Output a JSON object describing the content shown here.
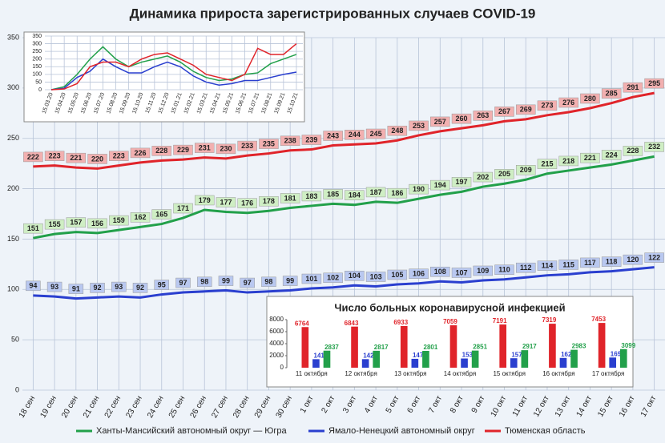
{
  "chart_data": [
    {
      "type": "line",
      "title": "Динамика прироста зарегистрированных случаев COVID-19",
      "categories": [
        "18 сен",
        "19 сен",
        "20 сен",
        "21 сен",
        "22 сен",
        "23 сен",
        "24 сен",
        "25 сен",
        "26 сен",
        "27 сен",
        "28 сен",
        "29 сен",
        "30 сен",
        "1 окт",
        "2 окт",
        "3 окт",
        "4 окт",
        "5 окт",
        "6 окт",
        "7 окт",
        "8 окт",
        "9 окт",
        "10 окт",
        "11 окт",
        "12 окт",
        "13 окт",
        "14 окт",
        "15 окт",
        "16 окт",
        "17 окт"
      ],
      "series": [
        {
          "name": "Ханты-Мансийский автономный округ — Югра",
          "color": "#22a04a",
          "values": [
            151,
            155,
            157,
            156,
            159,
            162,
            165,
            171,
            179,
            177,
            176,
            178,
            181,
            183,
            185,
            184,
            187,
            186,
            190,
            194,
            197,
            202,
            205,
            209,
            215,
            218,
            221,
            224,
            228,
            232
          ]
        },
        {
          "name": "Ямало-Ненецкий автономный округ",
          "color": "#2a3fcf",
          "values": [
            94,
            93,
            91,
            92,
            93,
            92,
            95,
            97,
            98,
            99,
            97,
            98,
            99,
            101,
            102,
            104,
            103,
            105,
            106,
            108,
            107,
            109,
            110,
            112,
            114,
            115,
            117,
            118,
            120,
            122
          ]
        },
        {
          "name": "Тюменская область",
          "color": "#e0242a",
          "values": [
            222,
            223,
            221,
            220,
            223,
            226,
            228,
            229,
            231,
            230,
            233,
            235,
            238,
            239,
            243,
            244,
            245,
            248,
            253,
            257,
            260,
            263,
            267,
            269,
            273,
            276,
            280,
            285,
            291,
            295
          ]
        }
      ],
      "ylim": [
        0,
        350
      ],
      "yticks": [
        0,
        50,
        100,
        150,
        200,
        250,
        300,
        350
      ],
      "grid": true
    },
    {
      "type": "line",
      "categories": [
        "15.03.20",
        "15.04.20",
        "15.05.20",
        "15.06.20",
        "15.07.20",
        "15.08.20",
        "15.09.20",
        "15.10.20",
        "15.11.20",
        "15.12.20",
        "15.01.21",
        "15.02.21",
        "15.03.21",
        "15.04.21",
        "15.05.21",
        "15.06.21",
        "15.07.21",
        "15.08.21",
        "15.09.21",
        "15.10.21"
      ],
      "series": [
        {
          "color": "#22a04a",
          "values": [
            0,
            20,
            100,
            200,
            280,
            200,
            150,
            180,
            200,
            220,
            180,
            120,
            80,
            60,
            70,
            100,
            110,
            170,
            200,
            230
          ]
        },
        {
          "color": "#2a3fcf",
          "values": [
            0,
            10,
            80,
            120,
            200,
            150,
            110,
            110,
            150,
            180,
            150,
            90,
            50,
            30,
            40,
            60,
            60,
            80,
            100,
            115
          ]
        },
        {
          "color": "#e0242a",
          "values": [
            0,
            5,
            40,
            150,
            180,
            180,
            150,
            200,
            230,
            240,
            200,
            160,
            100,
            80,
            60,
            100,
            270,
            230,
            230,
            300
          ]
        }
      ],
      "ylim": [
        0,
        350
      ],
      "yticks": [
        0,
        50,
        100,
        150,
        200,
        250,
        300,
        350
      ],
      "grid": true
    },
    {
      "type": "bar",
      "title": "Число больных коронавирусной  инфекцией",
      "categories": [
        "11 октября",
        "12 октября",
        "13 октября",
        "14 октября",
        "15 октября",
        "16 октября",
        "17 октября"
      ],
      "series": [
        {
          "color": "#e0242a",
          "values": [
            6764,
            6843,
            6933,
            7059,
            7191,
            7319,
            7453
          ]
        },
        {
          "color": "#2a3fcf",
          "values": [
            1418,
            1424,
            1477,
            1532,
            1576,
            1628,
            1693
          ]
        },
        {
          "color": "#22a04a",
          "values": [
            2837,
            2817,
            2801,
            2851,
            2917,
            2983,
            3099
          ]
        }
      ],
      "ylim": [
        0,
        8000
      ],
      "yticks": [
        0,
        2000,
        4000,
        6000,
        8000
      ],
      "grid": false
    }
  ]
}
